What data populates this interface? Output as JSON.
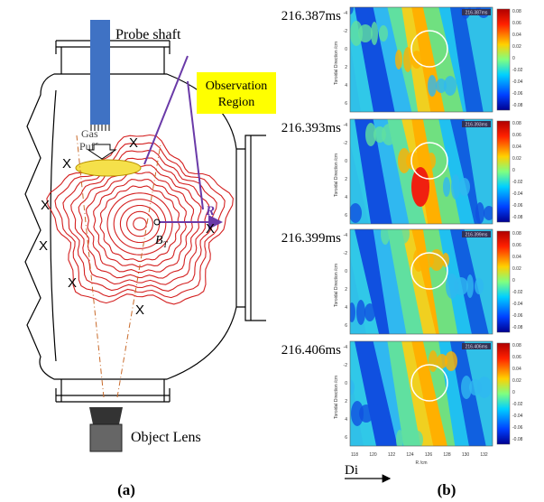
{
  "panel_a": {
    "probe_label": "Probe shaft",
    "observation_region": [
      "Observation",
      "Region"
    ],
    "gas_puff": [
      "Gas",
      "Puff"
    ],
    "r_label": "R",
    "bt_label": "B",
    "bt_sub": "T",
    "marker": "X",
    "lens_label": "Object Lens",
    "caption": "(a)"
  },
  "panel_b": {
    "frames": [
      "216.387ms",
      "216.393ms",
      "216.399ms",
      "216.406ms"
    ],
    "y_label": "Toroidal Direction /cm",
    "y_ticks": [
      -4,
      -2,
      0,
      2,
      4,
      6
    ],
    "colorbar_ticks": [
      0.08,
      0.06,
      0.04,
      0.02,
      0,
      -0.02,
      -0.04,
      -0.06,
      -0.08
    ],
    "x_ticks": [
      118,
      120,
      122,
      124,
      126,
      128,
      130,
      132
    ],
    "x_label": "R /cm",
    "direction": "Di",
    "caption": "(b)"
  }
}
